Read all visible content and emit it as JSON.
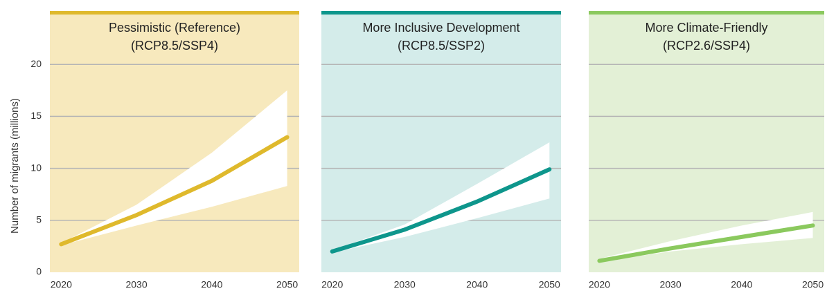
{
  "chart_data": [
    {
      "type": "line",
      "title": "Pessimistic (Reference)",
      "subtitle": "(RCP8.5/SSP4)",
      "ylabel": "Number of migrants (millions)",
      "ylim": [
        0,
        25
      ],
      "yticks": [
        0,
        5,
        10,
        15,
        20
      ],
      "grid": true,
      "xlim": [
        2018.5,
        2051.6
      ],
      "xticks": [
        2020,
        2030,
        2040,
        2050
      ],
      "background": "#f7e9bd",
      "color": "#dfb92c",
      "x": [
        2020,
        2030,
        2040,
        2050
      ],
      "values": [
        2.7,
        5.5,
        8.8,
        13
      ],
      "upper": [
        2.8,
        6.5,
        11.5,
        17.5
      ],
      "lower": [
        2.6,
        4.5,
        6.3,
        8.3
      ]
    },
    {
      "type": "line",
      "title": "More Inclusive Development",
      "subtitle": "(RCP8.5/SSP2)",
      "xlim": [
        2018.5,
        2051.6
      ],
      "xticks": [
        2020,
        2030,
        2040,
        2050
      ],
      "background": "#d4ecea",
      "color": "#0e968c",
      "x": [
        2020,
        2030,
        2040,
        2050
      ],
      "values": [
        2.0,
        4.1,
        6.8,
        9.9
      ],
      "upper": [
        2.1,
        4.6,
        8.5,
        12.5
      ],
      "lower": [
        1.9,
        3.4,
        5.2,
        7.1
      ]
    },
    {
      "type": "line",
      "title": "More Climate-Friendly",
      "subtitle": "(RCP2.6/SSP4)",
      "xlim": [
        2018.5,
        2051.6
      ],
      "xticks": [
        2020,
        2030,
        2040,
        2050
      ],
      "background": "#e3f0d6",
      "color": "#8bc95e",
      "x": [
        2020,
        2030,
        2040,
        2050
      ],
      "values": [
        1.1,
        2.3,
        3.4,
        4.5
      ],
      "upper": [
        1.3,
        3.0,
        4.5,
        5.8
      ],
      "lower": [
        1.0,
        2.0,
        2.7,
        3.3
      ]
    }
  ]
}
